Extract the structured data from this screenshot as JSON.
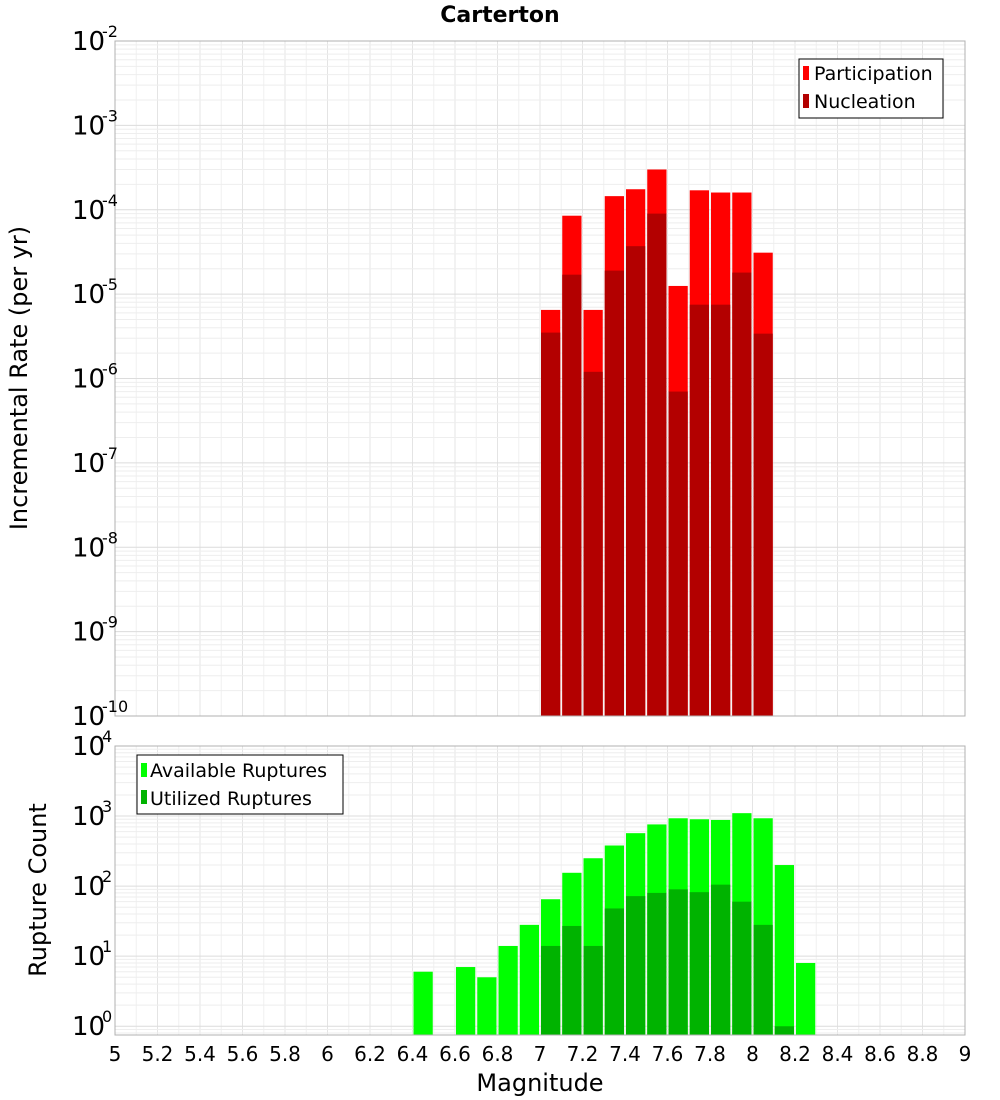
{
  "chart_data": [
    {
      "type": "bar",
      "title": "Carterton",
      "ylabel": "Incremental Rate (per yr)",
      "xlabel": "",
      "y_scale": "log",
      "ylim": [
        1e-10,
        0.01
      ],
      "xlim": [
        5,
        9
      ],
      "bin_width": 0.1,
      "legend_position": "top-right",
      "grid": true,
      "colors": {
        "Participation": "#ff0000",
        "Nucleation": "#b30000"
      },
      "y_ticks": [
        {
          "base": "10",
          "exp": "-10",
          "value": 1e-10
        },
        {
          "base": "10",
          "exp": "-9",
          "value": 1e-09
        },
        {
          "base": "10",
          "exp": "-8",
          "value": 1e-08
        },
        {
          "base": "10",
          "exp": "-7",
          "value": 1e-07
        },
        {
          "base": "10",
          "exp": "-6",
          "value": 1e-06
        },
        {
          "base": "10",
          "exp": "-5",
          "value": 1e-05
        },
        {
          "base": "10",
          "exp": "-4",
          "value": 0.0001
        },
        {
          "base": "10",
          "exp": "-3",
          "value": 0.001
        },
        {
          "base": "10",
          "exp": "-2",
          "value": 0.01
        }
      ],
      "x": [
        7.05,
        7.15,
        7.25,
        7.35,
        7.45,
        7.55,
        7.65,
        7.75,
        7.85,
        7.95,
        8.05
      ],
      "series": [
        {
          "name": "Participation",
          "values": [
            6.5e-06,
            8.5e-05,
            6.5e-06,
            0.000145,
            0.000175,
            0.0003,
            1.25e-05,
            0.00017,
            0.00016,
            0.00016,
            3.1e-05
          ]
        },
        {
          "name": "Nucleation",
          "values": [
            3.5e-06,
            1.7e-05,
            1.2e-06,
            1.9e-05,
            3.7e-05,
            9e-05,
            7e-07,
            7.5e-06,
            7.5e-06,
            1.8e-05,
            3.4e-06
          ]
        }
      ]
    },
    {
      "type": "bar",
      "title": "",
      "ylabel": "Rupture Count",
      "xlabel": "Magnitude",
      "y_scale": "log",
      "ylim": [
        0.75,
        10000
      ],
      "xlim": [
        5,
        9
      ],
      "bin_width": 0.1,
      "legend_position": "top-left",
      "grid": true,
      "colors": {
        "Available Ruptures": "#00ff00",
        "Utilized Ruptures": "#00b300"
      },
      "y_ticks": [
        {
          "base": "10",
          "exp": "0",
          "value": 1
        },
        {
          "base": "10",
          "exp": "1",
          "value": 10
        },
        {
          "base": "10",
          "exp": "2",
          "value": 100
        },
        {
          "base": "10",
          "exp": "3",
          "value": 1000
        },
        {
          "base": "10",
          "exp": "4",
          "value": 10000
        }
      ],
      "x_ticks": [
        "5",
        "5.2",
        "5.4",
        "5.6",
        "5.8",
        "6",
        "6.2",
        "6.4",
        "6.6",
        "6.8",
        "7",
        "7.2",
        "7.4",
        "7.6",
        "7.8",
        "8",
        "8.2",
        "8.4",
        "8.6",
        "8.8",
        "9"
      ],
      "x": [
        6.45,
        6.65,
        6.75,
        6.85,
        6.95,
        7.05,
        7.15,
        7.25,
        7.35,
        7.45,
        7.55,
        7.65,
        7.75,
        7.85,
        7.95,
        8.05,
        8.15,
        8.25
      ],
      "series": [
        {
          "name": "Available Ruptures",
          "values": [
            6,
            7,
            5,
            14,
            28,
            65,
            155,
            250,
            380,
            570,
            760,
            930,
            900,
            880,
            1100,
            930,
            200,
            8
          ]
        },
        {
          "name": "Utilized Ruptures",
          "values": [
            0,
            0,
            0,
            0,
            0,
            14,
            27,
            14,
            48,
            72,
            80,
            90,
            82,
            105,
            60,
            28,
            1,
            0
          ]
        }
      ]
    }
  ]
}
